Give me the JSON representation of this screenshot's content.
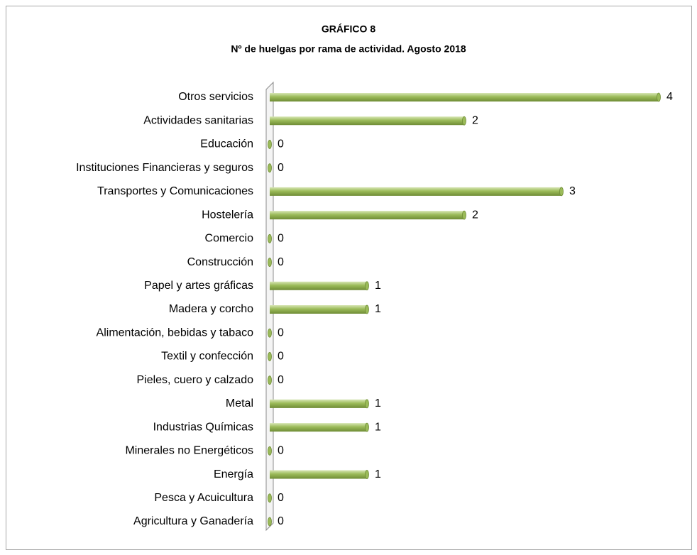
{
  "chart_data": {
    "type": "bar",
    "orientation": "horizontal",
    "title": "GRÁFICO 8",
    "subtitle": "Nº de huelgas por rama de actividad. Agosto 2018",
    "categories": [
      "Otros servicios",
      "Actividades sanitarias",
      "Educación",
      "Instituciones Financieras y seguros",
      "Transportes y Comunicaciones",
      "Hostelería",
      "Comercio",
      "Construcción",
      "Papel y artes gráficas",
      "Madera y corcho",
      "Alimentación, bebidas y tabaco",
      "Textil y confección",
      "Pieles, cuero y calzado",
      "Metal",
      "Industrias Químicas",
      "Minerales no Energéticos",
      "Energía",
      "Pesca y Acuicultura",
      "Agricultura y Ganadería"
    ],
    "values": [
      4,
      2,
      0,
      0,
      3,
      2,
      0,
      0,
      1,
      1,
      0,
      0,
      0,
      1,
      1,
      0,
      1,
      0,
      0
    ],
    "color": "#9bbb59",
    "xlim": [
      0,
      4
    ]
  }
}
